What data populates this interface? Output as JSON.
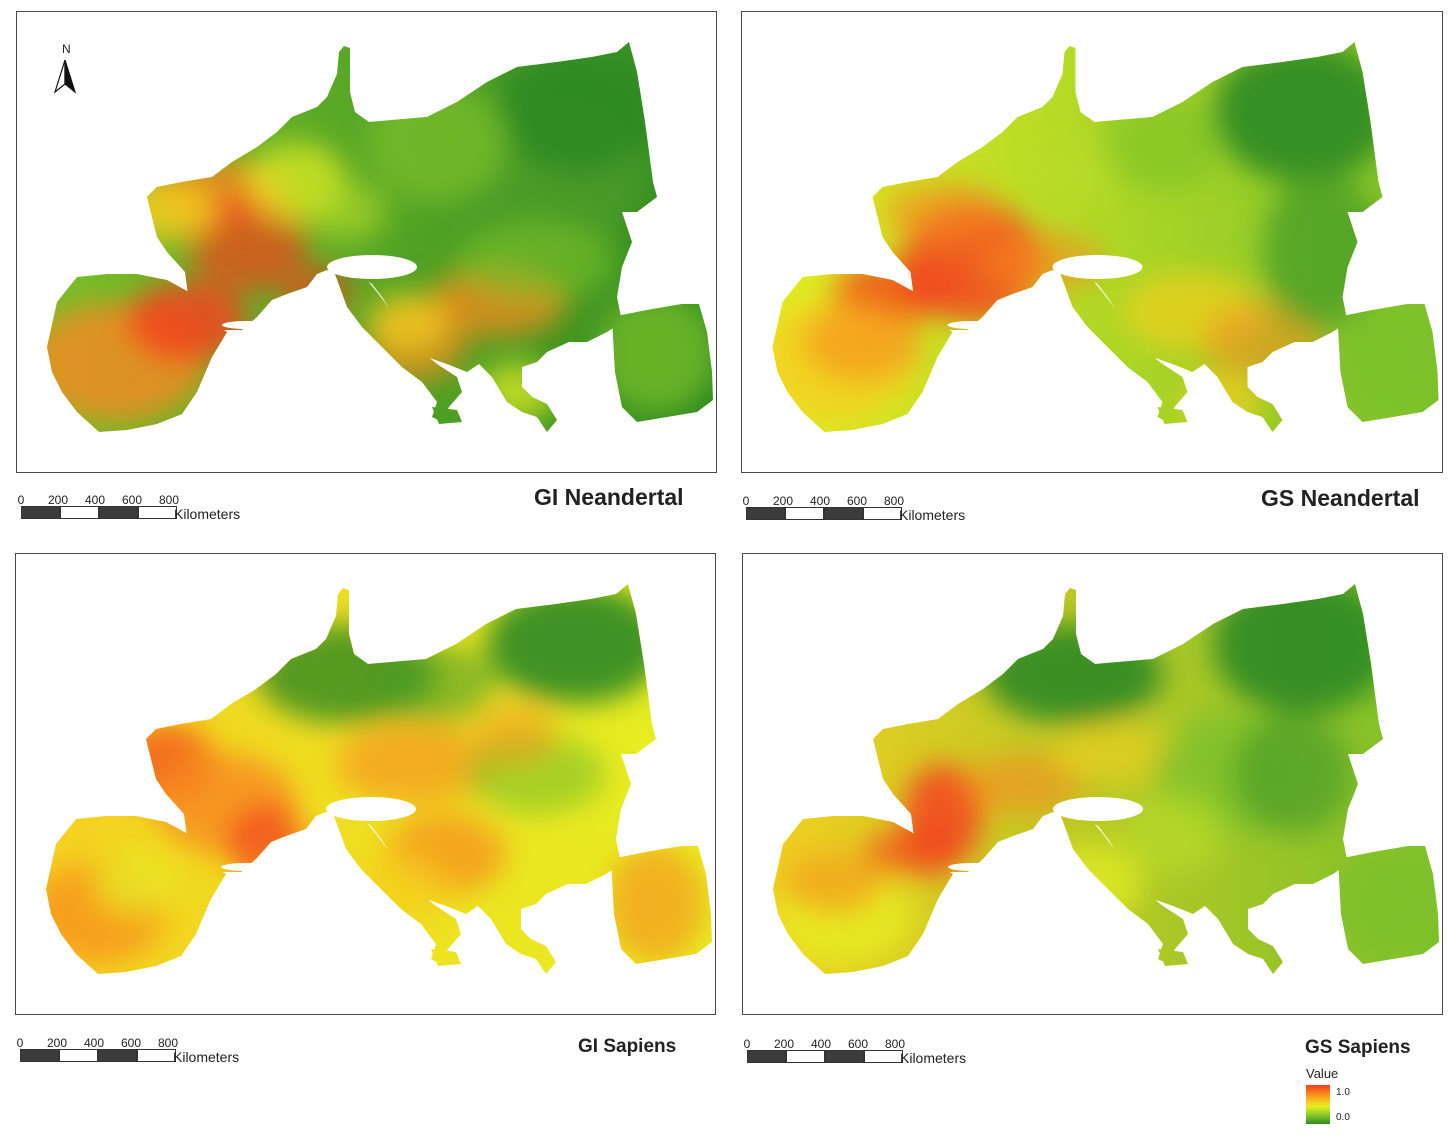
{
  "north_arrow": {
    "label": "N",
    "icon": "north-arrow-icon"
  },
  "scale": {
    "ticks": [
      "0",
      "200",
      "400",
      "600",
      "800"
    ],
    "unit": "Kilometers"
  },
  "maps": [
    {
      "id": "gi-neandertal",
      "title": "GI Neandertal"
    },
    {
      "id": "gs-neandertal",
      "title": "GS Neandertal"
    },
    {
      "id": "gi-sapiens",
      "title": "GI Sapiens"
    },
    {
      "id": "gs-sapiens",
      "title": "GS Sapiens"
    }
  ],
  "legend": {
    "title": "Value",
    "max": "1.0",
    "min": "0.0",
    "colors": {
      "high": "#f63c1c",
      "mid": "#e6ef22",
      "low": "#2f8a21"
    }
  }
}
